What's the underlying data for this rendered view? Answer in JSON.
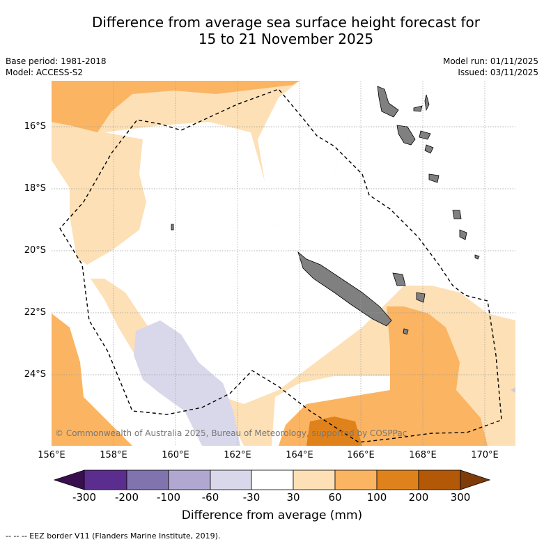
{
  "title_line1": "Difference from average sea surface height forecast for",
  "title_line2": "15 to 21 November 2025",
  "base_period": "Base period: 1981-2018",
  "model": "Model: ACCESS-S2",
  "model_run": "Model run: 01/11/2025",
  "issued": "Issued: 03/11/2025",
  "copyright": "© Commonwealth of Australia 2025, Bureau of Meteorology, supported by COSPPac",
  "lat_labels": [
    "16°S",
    "18°S",
    "20°S",
    "22°S",
    "24°S"
  ],
  "lon_labels": [
    "156°E",
    "158°E",
    "160°E",
    "162°E",
    "164°E",
    "166°E",
    "168°E",
    "170°E"
  ],
  "colorbar": {
    "title": "Difference from average (mm)",
    "ticks": [
      "-300",
      "-200",
      "-100",
      "-60",
      "-30",
      "30",
      "60",
      "100",
      "200",
      "300"
    ],
    "colors": [
      "#3a0f50",
      "#5b2d8e",
      "#8073ae",
      "#b0a8d0",
      "#d8d8ea",
      "#ffffff",
      "#fde0b6",
      "#fbb462",
      "#e0821c",
      "#b35807",
      "#7f3b08"
    ]
  },
  "eez_note": "-- -- -- EEZ border V11 (Flanders Marine Institute, 2019).",
  "colors": {
    "land": "#808080",
    "grid": "#999999"
  }
}
